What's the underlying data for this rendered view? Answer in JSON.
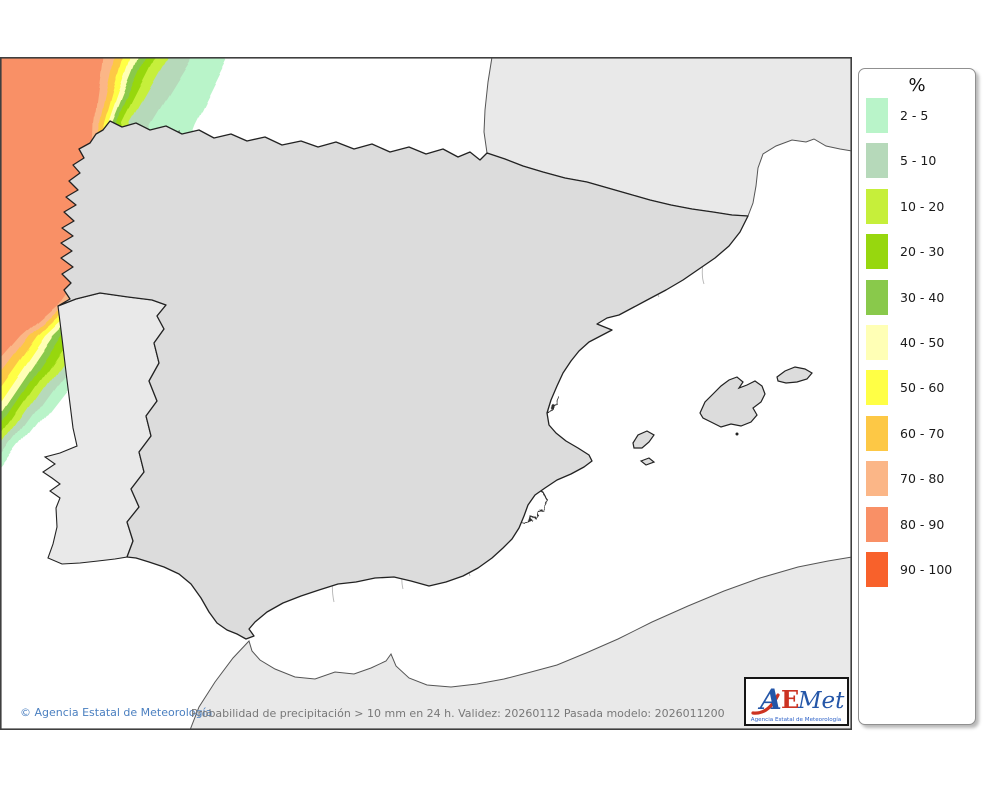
{
  "legend": {
    "title": "%",
    "items": [
      {
        "label": "2 - 5",
        "color": "#b9f4c9"
      },
      {
        "label": "5 - 10",
        "color": "#b6d9ba"
      },
      {
        "label": "10 - 20",
        "color": "#c6ef3a"
      },
      {
        "label": "20 - 30",
        "color": "#97d70e"
      },
      {
        "label": "30 - 40",
        "color": "#89c94b"
      },
      {
        "label": "40 - 50",
        "color": "#ffffb5"
      },
      {
        "label": "50 - 60",
        "color": "#ffff45"
      },
      {
        "label": "60 - 70",
        "color": "#fdc845"
      },
      {
        "label": "70 - 80",
        "color": "#fbb687"
      },
      {
        "label": "80 - 90",
        "color": "#f99066"
      },
      {
        "label": "90 - 100",
        "color": "#f8612b"
      }
    ]
  },
  "footer": {
    "copyright": "© Agencia Estatal de Meteorología",
    "info": "Probabilidad de precipitación > 10 mm en 24 h. Validez: 20260112 Pasada modelo: 2026011200"
  },
  "logo": {
    "a": "A",
    "e": "E",
    "met": "Met",
    "subtitle": "Agencia Estatal de Meteorología"
  },
  "map": {
    "sea_color": "#ffffff",
    "land_color": "#dcdcdc",
    "foreign_land_color": "#e9e9e9",
    "coast_color": "#222222",
    "region_border_color": "#2e2e2e",
    "province_border_color": "#b4b4b4",
    "frame_color": "#3f3f3f"
  }
}
